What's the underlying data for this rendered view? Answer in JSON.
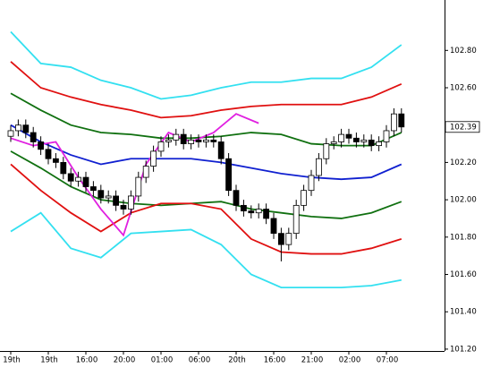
{
  "chart_data": {
    "type": "candlestick",
    "categories": [
      "19th",
      null,
      null,
      null,
      null,
      "19th",
      null,
      null,
      null,
      null,
      "16:00",
      null,
      null,
      null,
      null,
      "20:00",
      null,
      null,
      null,
      null,
      "01:00",
      null,
      null,
      null,
      null,
      "06:00",
      null,
      null,
      null,
      null,
      "20th",
      null,
      null,
      null,
      null,
      "16:00",
      null,
      null,
      null,
      null,
      "21:00",
      null,
      null,
      null,
      null,
      "02:00",
      null,
      null,
      null,
      null,
      "07:00",
      null,
      null
    ],
    "open": [
      102.34,
      102.37,
      102.4,
      102.36,
      102.31,
      102.27,
      102.22,
      102.2,
      102.14,
      102.1,
      102.12,
      102.07,
      102.05,
      102.01,
      102.02,
      101.97,
      101.95,
      102.02,
      102.12,
      102.18,
      102.26,
      102.31,
      102.32,
      102.35,
      102.3,
      102.32,
      102.31,
      102.32,
      102.31,
      102.22,
      102.05,
      101.97,
      101.94,
      101.93,
      101.95,
      101.9,
      101.82,
      101.76,
      101.82,
      101.97,
      102.05,
      102.13,
      102.22,
      102.3,
      102.31,
      102.35,
      102.33,
      102.31,
      102.32,
      102.29,
      102.31,
      102.37,
      102.46
    ],
    "high": [
      102.4,
      102.43,
      102.43,
      102.39,
      102.34,
      102.3,
      102.25,
      102.23,
      102.17,
      102.15,
      102.15,
      102.1,
      102.08,
      102.05,
      102.05,
      102.0,
      102.05,
      102.15,
      102.21,
      102.29,
      102.34,
      102.35,
      102.38,
      102.38,
      102.35,
      102.35,
      102.35,
      102.35,
      102.34,
      102.25,
      102.08,
      102.0,
      101.97,
      101.98,
      101.98,
      101.93,
      101.85,
      101.85,
      102.0,
      102.08,
      102.16,
      102.25,
      102.33,
      102.34,
      102.38,
      102.38,
      102.36,
      102.35,
      102.35,
      102.34,
      102.4,
      102.49,
      102.49
    ],
    "low": [
      102.31,
      102.34,
      102.33,
      102.28,
      102.24,
      102.19,
      102.17,
      102.11,
      102.07,
      102.07,
      102.04,
      102.02,
      101.98,
      101.98,
      101.94,
      101.92,
      101.92,
      101.99,
      102.09,
      102.15,
      102.23,
      102.28,
      102.29,
      102.27,
      102.27,
      102.28,
      102.28,
      102.28,
      102.19,
      102.02,
      101.94,
      101.91,
      101.9,
      101.9,
      101.87,
      101.79,
      101.67,
      101.73,
      101.79,
      101.94,
      102.02,
      102.1,
      102.19,
      102.27,
      102.28,
      102.3,
      102.28,
      102.28,
      102.26,
      102.26,
      102.28,
      102.34,
      102.36
    ],
    "close": [
      102.37,
      102.4,
      102.36,
      102.31,
      102.27,
      102.22,
      102.2,
      102.14,
      102.1,
      102.12,
      102.07,
      102.05,
      102.01,
      102.02,
      101.97,
      101.95,
      102.02,
      102.12,
      102.18,
      102.26,
      102.31,
      102.32,
      102.35,
      102.3,
      102.32,
      102.31,
      102.32,
      102.31,
      102.22,
      102.05,
      101.97,
      101.94,
      101.93,
      101.95,
      101.9,
      101.82,
      101.76,
      101.82,
      101.97,
      102.05,
      102.13,
      102.22,
      102.3,
      102.31,
      102.35,
      102.33,
      102.31,
      102.32,
      102.29,
      102.31,
      102.37,
      102.46,
      102.39
    ],
    "lines": [
      {
        "color": "#33e0f0",
        "x": [
          0,
          4,
          8,
          12,
          16,
          20,
          24,
          28,
          32,
          36,
          40,
          44,
          48,
          52
        ],
        "values": [
          102.9,
          102.73,
          102.71,
          102.64,
          102.6,
          102.54,
          102.56,
          102.6,
          102.63,
          102.63,
          102.65,
          102.65,
          102.71,
          102.83
        ]
      },
      {
        "color": "#e01010",
        "x": [
          0,
          4,
          8,
          12,
          16,
          20,
          24,
          28,
          32,
          36,
          40,
          44,
          48,
          52
        ],
        "values": [
          102.74,
          102.6,
          102.55,
          102.51,
          102.48,
          102.44,
          102.45,
          102.48,
          102.5,
          102.51,
          102.51,
          102.51,
          102.55,
          102.62
        ]
      },
      {
        "color": "#107010",
        "x": [
          0,
          4,
          8,
          12,
          16,
          20,
          24,
          28,
          32,
          36,
          40,
          44,
          48,
          52
        ],
        "values": [
          102.57,
          102.48,
          102.4,
          102.36,
          102.35,
          102.33,
          102.33,
          102.34,
          102.36,
          102.35,
          102.3,
          102.29,
          102.29,
          102.36
        ]
      },
      {
        "color": "#1020d0",
        "x": [
          0,
          4,
          8,
          12,
          16,
          20,
          24,
          28,
          32,
          36,
          40,
          44,
          48,
          52
        ],
        "values": [
          102.4,
          102.31,
          102.24,
          102.19,
          102.22,
          102.22,
          102.22,
          102.2,
          102.17,
          102.14,
          102.12,
          102.11,
          102.12,
          102.19
        ]
      },
      {
        "color": "#107010",
        "x": [
          0,
          4,
          8,
          12,
          16,
          20,
          24,
          28,
          32,
          36,
          40,
          44,
          48,
          52
        ],
        "values": [
          102.26,
          102.17,
          102.07,
          102.0,
          101.98,
          101.97,
          101.98,
          101.99,
          101.95,
          101.93,
          101.91,
          101.9,
          101.93,
          101.99
        ]
      },
      {
        "color": "#e01010",
        "x": [
          0,
          4,
          8,
          12,
          16,
          20,
          24,
          28,
          32,
          36,
          40,
          44,
          48,
          52
        ],
        "values": [
          102.19,
          102.05,
          101.93,
          101.83,
          101.93,
          101.98,
          101.98,
          101.95,
          101.79,
          101.72,
          101.71,
          101.71,
          101.74,
          101.79
        ]
      },
      {
        "color": "#33e0f0",
        "x": [
          0,
          4,
          8,
          12,
          16,
          20,
          24,
          28,
          32,
          36,
          40,
          44,
          48,
          52
        ],
        "values": [
          101.83,
          101.93,
          101.74,
          101.69,
          101.82,
          101.83,
          101.84,
          101.76,
          101.6,
          101.53,
          101.53,
          101.53,
          101.54,
          101.57
        ]
      },
      {
        "color": "#e020e0",
        "x": [
          0,
          3,
          6,
          9,
          12,
          15,
          18,
          21,
          24,
          27,
          30,
          33
        ],
        "values": [
          102.33,
          102.29,
          102.31,
          102.12,
          101.95,
          101.81,
          102.19,
          102.36,
          102.31,
          102.36,
          102.46,
          102.41
        ]
      }
    ],
    "last_price": 102.39,
    "ylim": [
      101.19,
      103.07
    ],
    "yticks": [
      {
        "value": 101.2,
        "label": "101.20"
      },
      {
        "value": 101.4,
        "label": "101.40"
      },
      {
        "value": 101.6,
        "label": "101.60"
      },
      {
        "value": 101.8,
        "label": "101.80"
      },
      {
        "value": 102.0,
        "label": "102.00"
      },
      {
        "value": 102.2,
        "label": "102.20"
      },
      {
        "value": 102.6,
        "label": "102.60"
      },
      {
        "value": 102.8,
        "label": "102.80"
      }
    ]
  }
}
